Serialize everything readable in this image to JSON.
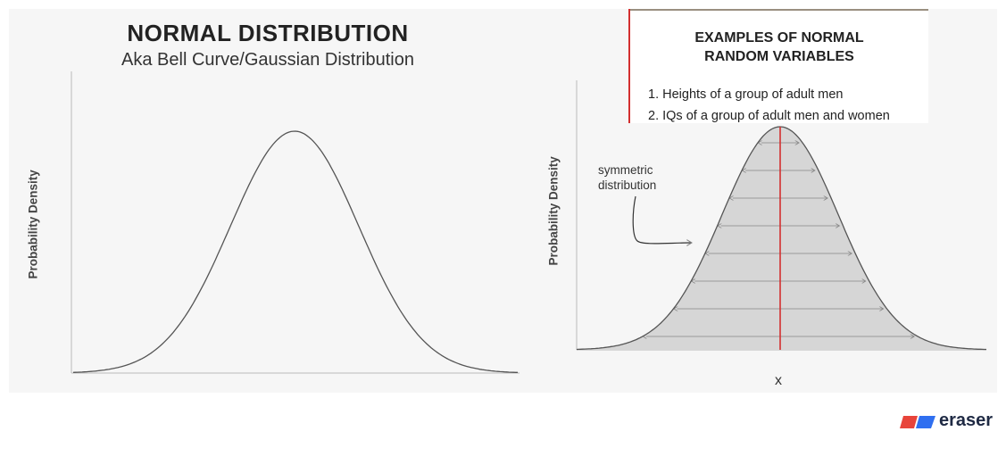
{
  "left_panel": {
    "title": "NORMAL DISTRIBUTION",
    "subtitle": "Aka Bell Curve/Gaussian Distribution",
    "ylabel": "Probability Density"
  },
  "right_panel": {
    "ylabel": "Probability Density",
    "xlabel": "x",
    "examples_title_line1": "EXAMPLES OF NORMAL",
    "examples_title_line2": "RANDOM VARIABLES",
    "examples": [
      "1. Heights of a group of adult men",
      "2. IQs of a group of adult men and women"
    ],
    "annotation_line1": "symmetric",
    "annotation_line2": "distribution"
  },
  "brand": {
    "name": "eraser",
    "colors": {
      "red": "#e8443a",
      "blue": "#2f6ff0"
    }
  },
  "colors": {
    "mean_line": "#d32f2f",
    "fill": "#d6d6d6",
    "curve": "#555555"
  }
}
